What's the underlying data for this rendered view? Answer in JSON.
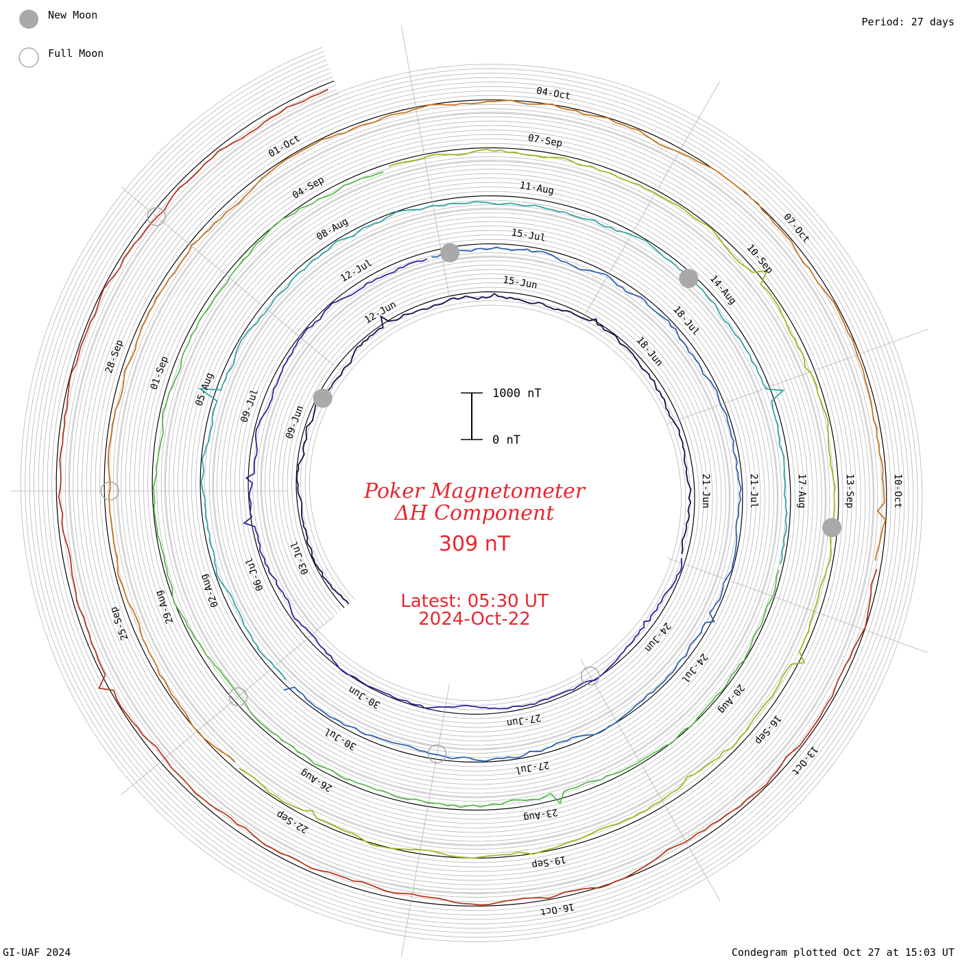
{
  "header": {
    "legend_new_moon": "New Moon",
    "legend_full_moon": "Full Moon",
    "period": "Period: 27 days"
  },
  "footer": {
    "credit": "GI-UAF 2024",
    "plotted": "Condegram plotted Oct 27 at 15:03 UT"
  },
  "colors": {
    "title": "#e8262e",
    "grid": "#b4b4b4",
    "axis": "#000000",
    "moon_new": "#a9a9a9",
    "moon_full": "#a9a9a9",
    "rotations": [
      "#140a46",
      "#27239c",
      "#2c61b0",
      "#33a3a6",
      "#58ba4a",
      "#a2b61c",
      "#c6731c",
      "#b8361a"
    ]
  },
  "chart_data": {
    "type": "condegram",
    "title": "Poker Magnetometer",
    "subtitle": "ΔH Component",
    "value_label": "309 nT",
    "latest_label": "Latest: 05:30 UT",
    "latest_date": "2024-Oct-22",
    "scale_bar": {
      "top_label": "1000 nT",
      "bottom_label": "0 nT",
      "top_value": 1000,
      "bottom_value": 0,
      "unit": "nT"
    },
    "period_days": 27,
    "rotations": [
      {
        "date_labels": [
          "03-Jul",
          "09-Jun",
          "12-Jun",
          "15-Jun",
          "18-Jun",
          "21-Jun",
          "24-Jun",
          "27-Jun",
          "30-Jun"
        ]
      },
      {
        "date_labels": [
          "06-Jul",
          "09-Jul",
          "12-Jul",
          "15-Jul",
          "18-Jul",
          "21-Jul",
          "24-Jul",
          "27-Jul",
          "30-Jul"
        ]
      },
      {
        "date_labels": [
          "02-Aug",
          "05-Aug",
          "08-Aug",
          "11-Aug",
          "14-Aug",
          "17-Aug",
          "20-Aug",
          "23-Aug",
          "26-Aug"
        ]
      },
      {
        "date_labels": [
          "29-Aug",
          "01-Sep",
          "04-Sep",
          "07-Sep",
          "10-Sep",
          "13-Sep",
          "16-Sep",
          "19-Sep",
          "22-Sep"
        ]
      },
      {
        "date_labels": [
          "25-Sep",
          "28-Sep",
          "01-Oct",
          "04-Oct",
          "07-Oct",
          "10-Oct",
          "13-Oct",
          "16-Oct"
        ]
      }
    ],
    "new_moons": [
      "2024-Jul-05",
      "2024-Aug-04",
      "2024-Sep-03",
      "2024-Oct-02"
    ],
    "full_moons": [
      "2024-Jun-22",
      "2024-Jul-21",
      "2024-Aug-19",
      "2024-Sep-18",
      "2024-Oct-17"
    ]
  }
}
